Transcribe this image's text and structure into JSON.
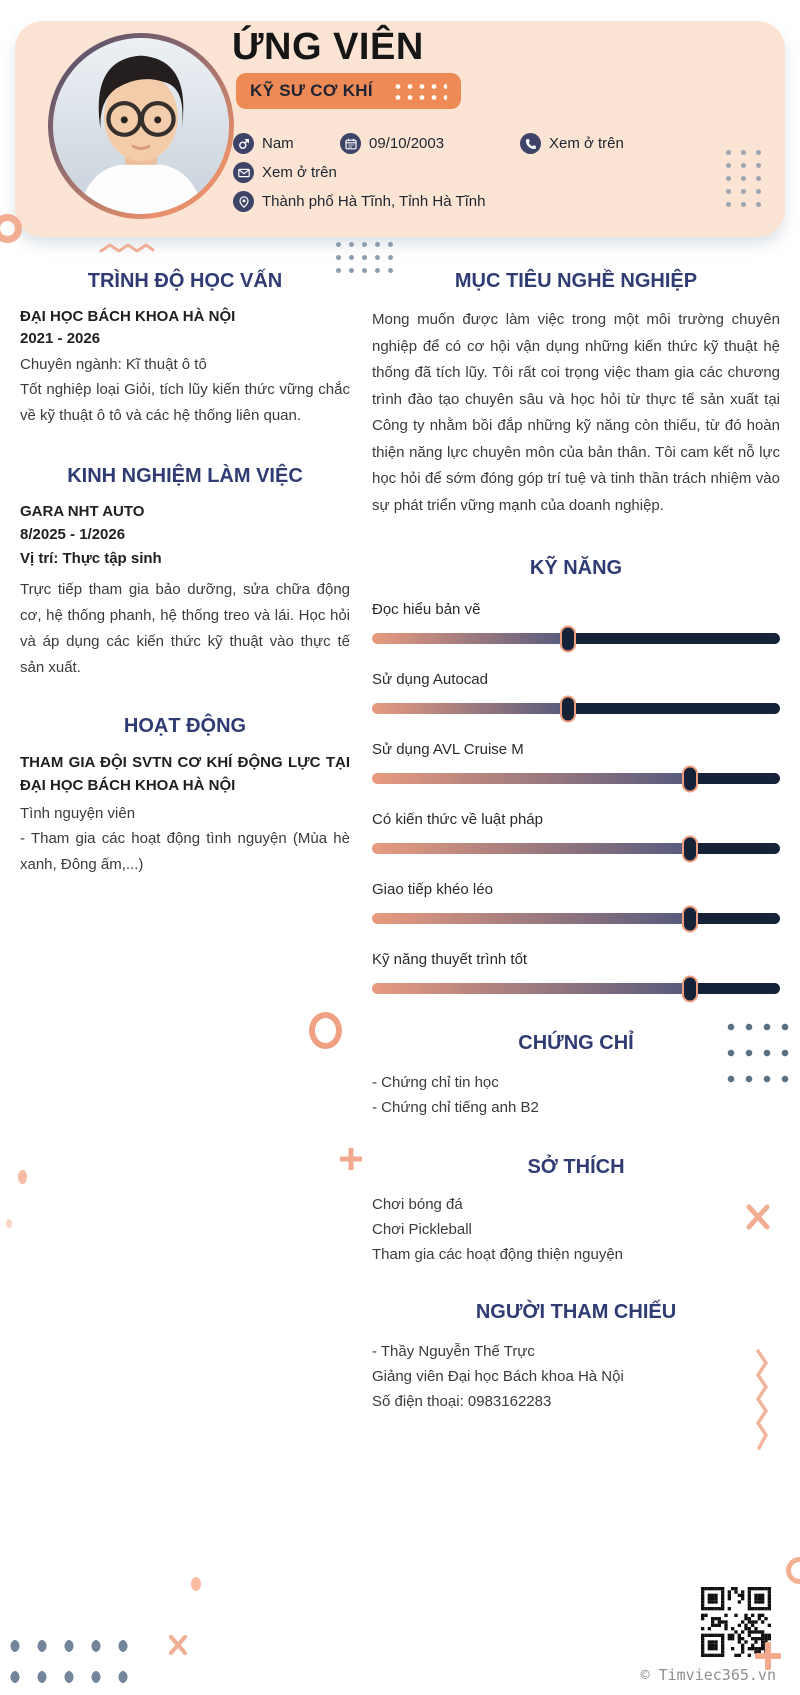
{
  "header": {
    "name": "ỨNG VIÊN",
    "title_badge": "KỸ SƯ CƠ KHÍ",
    "contacts": {
      "gender": "Nam",
      "dob": "09/10/2003",
      "phone": "Xem ở trên",
      "email": "Xem ở trên",
      "address": "Thành phố Hà Tĩnh, Tỉnh Hà Tĩnh"
    }
  },
  "sections": {
    "education": {
      "title": "TRÌNH ĐỘ HỌC VẤN",
      "school": "ĐẠI HỌC BÁCH KHOA HÀ NỘI",
      "period": "2021 - 2026",
      "major": "Chuyên ngành: Kĩ thuật ô tô",
      "description": "Tốt nghiệp loại Giỏi, tích lũy kiến thức vững chắc về kỹ thuật ô tô và các hệ thống liên quan."
    },
    "experience": {
      "title": "KINH NGHIỆM LÀM VIỆC",
      "company": "GARA NHT AUTO",
      "period": "8/2025 - 1/2026",
      "position": "Vị trí: Thực tập sinh",
      "description": "Trực tiếp tham gia bảo dưỡng, sửa chữa động cơ, hệ thống phanh, hệ thống treo và lái. Học hỏi và áp dụng các kiến thức kỹ thuật vào thực tế sản xuất."
    },
    "activities": {
      "title": "HOẠT ĐỘNG",
      "organization": "THAM GIA ĐỘI SVTN CƠ KHÍ ĐỘNG LỰC TẠI ĐẠI HỌC BÁCH KHOA HÀ NỘI",
      "role": "Tình nguyện viên",
      "description": "- Tham gia các hoạt động tình nguyện (Mùa hè xanh, Đông ấm,...)"
    },
    "objective": {
      "title": "MỤC TIÊU NGHỀ NGHIỆP",
      "text": "Mong muốn được làm việc trong một môi trường chuyên nghiệp để có cơ hội vận dụng những kiến thức kỹ thuật hệ thống đã tích lũy. Tôi rất coi trọng việc tham gia các chương trình đào tạo chuyên sâu và học hỏi từ thực tế sản xuất tại Công ty nhằm bồi đắp những kỹ năng còn thiếu, từ đó hoàn thiện năng lực chuyên môn của bản thân. Tôi cam kết nỗ lực học hỏi để sớm đóng góp trí tuệ và tinh thần trách nhiệm vào sự phát triển vững mạnh của doanh nghiệp."
    },
    "skills": {
      "title": "KỸ NĂNG",
      "items": [
        {
          "label": "Đọc hiểu bản vẽ",
          "level": 48
        },
        {
          "label": "Sử dụng Autocad",
          "level": 48
        },
        {
          "label": "Sử dụng AVL Cruise M",
          "level": 78
        },
        {
          "label": "Có kiến thức về luật pháp",
          "level": 78
        },
        {
          "label": "Giao tiếp khéo léo",
          "level": 78
        },
        {
          "label": "Kỹ năng thuyết trình tốt",
          "level": 78
        }
      ]
    },
    "certificates": {
      "title": "CHỨNG CHỈ",
      "items": [
        "- Chứng chỉ tin học",
        "- Chứng chỉ tiếng anh B2"
      ]
    },
    "hobbies": {
      "title": "SỞ THÍCH",
      "items": [
        "Chơi bóng đá",
        "Chơi Pickleball",
        "Tham gia các hoạt động thiện nguyện"
      ]
    },
    "references": {
      "title": "NGƯỜI THAM CHIẾU",
      "lines": [
        "- Thầy Nguyễn Thế Trực",
        "Giảng viên Đại học Bách khoa Hà Nội",
        "Số điện thoại: 0983162283"
      ]
    }
  },
  "footer": {
    "copyright": "© Timviec365.vn"
  },
  "icons": {
    "gender": "male-symbol",
    "dob": "calendar",
    "phone": "phone-handset",
    "email": "envelope",
    "address": "map-pin",
    "qr": "qr-code"
  },
  "colors": {
    "header_bg": "#FBE4D4",
    "accent_orange": "#EE8A55",
    "salmon_deco": "#F2AE93",
    "icon_navy": "#3E4468",
    "title_navy": "#2F3B72",
    "slider_dark": "#152238",
    "slider_gradient_start": "#E89B7F",
    "thumb_border": "#EE9D7F"
  }
}
